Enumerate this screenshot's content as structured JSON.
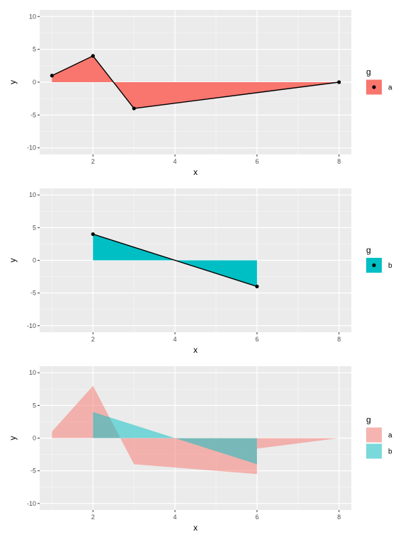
{
  "chart_data": [
    {
      "type": "area",
      "xlabel": "x",
      "ylabel": "y",
      "xlim": [
        0.7,
        8.3
      ],
      "ylim": [
        -11,
        11
      ],
      "x_ticks": [
        2,
        4,
        6,
        8
      ],
      "y_ticks": [
        -10,
        -5,
        0,
        5,
        10
      ],
      "grid": true,
      "legend": {
        "title": "g",
        "position": "right"
      },
      "series": [
        {
          "name": "a",
          "color": "#F8766D",
          "alpha": 1.0,
          "points": [
            [
              1,
              1
            ],
            [
              2,
              4
            ],
            [
              3,
              -4
            ],
            [
              8,
              0
            ]
          ],
          "line": true,
          "markers": true
        }
      ]
    },
    {
      "type": "area",
      "xlabel": "x",
      "ylabel": "y",
      "xlim": [
        0.7,
        8.3
      ],
      "ylim": [
        -11,
        11
      ],
      "x_ticks": [
        2,
        4,
        6,
        8
      ],
      "y_ticks": [
        -10,
        -5,
        0,
        5,
        10
      ],
      "grid": true,
      "legend": {
        "title": "g",
        "position": "right"
      },
      "series": [
        {
          "name": "b",
          "color": "#00BFC4",
          "alpha": 1.0,
          "points": [
            [
              2,
              4
            ],
            [
              6,
              -4
            ]
          ],
          "line": true,
          "markers": true
        }
      ]
    },
    {
      "type": "area",
      "xlabel": "x",
      "ylabel": "y",
      "xlim": [
        0.7,
        8.3
      ],
      "ylim": [
        -11,
        11
      ],
      "x_ticks": [
        2,
        4,
        6,
        8
      ],
      "y_ticks": [
        -10,
        -5,
        0,
        5,
        10
      ],
      "grid": true,
      "legend": {
        "title": "g",
        "position": "right"
      },
      "series": [
        {
          "name": "a",
          "color": "#F8766D",
          "alpha": 0.5,
          "points": [
            [
              1,
              1
            ],
            [
              2,
              8
            ],
            [
              3,
              -4
            ],
            [
              6,
              -5.5
            ],
            [
              6,
              -1.6
            ],
            [
              8,
              0
            ]
          ],
          "line": false,
          "markers": false
        },
        {
          "name": "b",
          "color": "#00BFC4",
          "alpha": 0.5,
          "points": [
            [
              2,
              4
            ],
            [
              6,
              -4
            ]
          ],
          "line": false,
          "markers": false
        }
      ]
    }
  ]
}
